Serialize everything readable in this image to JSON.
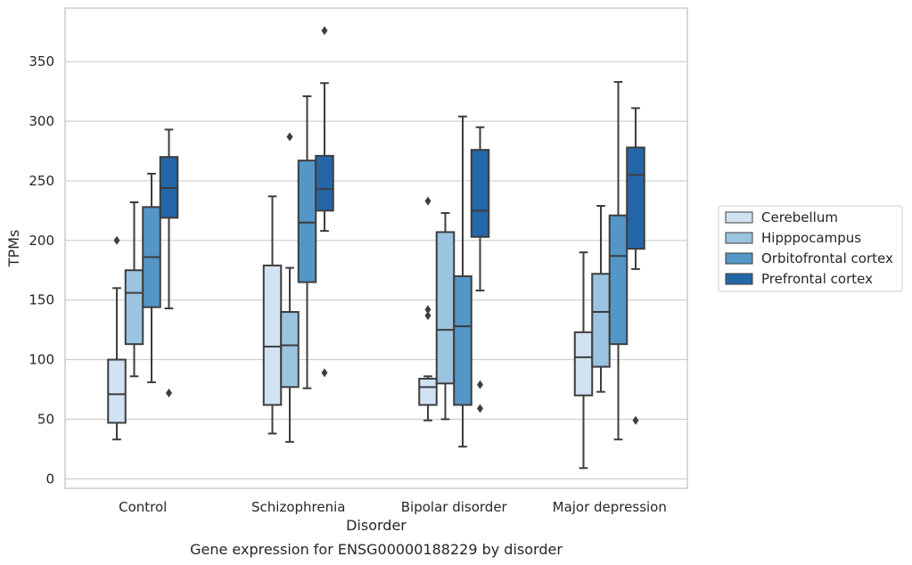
{
  "chart_data": {
    "type": "box",
    "title": "Gene expression for ENSG00000188229 by disorder",
    "xlabel": "Disorder",
    "ylabel": "TPMs",
    "ylim": [
      -8,
      395
    ],
    "yticks": [
      0,
      50,
      100,
      150,
      200,
      250,
      300,
      350
    ],
    "grid": true,
    "legend_position": "right",
    "categories": [
      "Control",
      "Schizophrenia",
      "Bipolar disorder",
      "Major depression"
    ],
    "series": [
      {
        "name": "Cerebellum",
        "color": "#d1e2f2",
        "boxes": [
          {
            "whisker_low": 33,
            "q1": 47,
            "median": 71,
            "q3": 100,
            "whisker_high": 160,
            "outliers": [
              200
            ]
          },
          {
            "whisker_low": 38,
            "q1": 62,
            "median": 111,
            "q3": 179,
            "whisker_high": 237,
            "outliers": []
          },
          {
            "whisker_low": 49,
            "q1": 62,
            "median": 77,
            "q3": 84,
            "whisker_high": 86,
            "outliers": [
              137,
              142,
              233
            ]
          },
          {
            "whisker_low": 9,
            "q1": 70,
            "median": 102,
            "q3": 123,
            "whisker_high": 190,
            "outliers": []
          }
        ]
      },
      {
        "name": "Hipppocampus",
        "color": "#9ac4df",
        "boxes": [
          {
            "whisker_low": 86,
            "q1": 113,
            "median": 156,
            "q3": 175,
            "whisker_high": 232,
            "outliers": []
          },
          {
            "whisker_low": 31,
            "q1": 77,
            "median": 112,
            "q3": 140,
            "whisker_high": 177,
            "outliers": [
              287
            ]
          },
          {
            "whisker_low": 50,
            "q1": 80,
            "median": 125,
            "q3": 207,
            "whisker_high": 223,
            "outliers": []
          },
          {
            "whisker_low": 73,
            "q1": 94,
            "median": 140,
            "q3": 172,
            "whisker_high": 229,
            "outliers": []
          }
        ]
      },
      {
        "name": "Orbitofrontal cortex",
        "color": "#5496c6",
        "boxes": [
          {
            "whisker_low": 81,
            "q1": 144,
            "median": 186,
            "q3": 228,
            "whisker_high": 256,
            "outliers": []
          },
          {
            "whisker_low": 76,
            "q1": 165,
            "median": 215,
            "q3": 267,
            "whisker_high": 321,
            "outliers": []
          },
          {
            "whisker_low": 27,
            "q1": 62,
            "median": 128,
            "q3": 170,
            "whisker_high": 304,
            "outliers": []
          },
          {
            "whisker_low": 33,
            "q1": 113,
            "median": 187,
            "q3": 221,
            "whisker_high": 333,
            "outliers": []
          }
        ]
      },
      {
        "name": "Prefrontal cortex",
        "color": "#2467a8",
        "boxes": [
          {
            "whisker_low": 143,
            "q1": 219,
            "median": 244,
            "q3": 270,
            "whisker_high": 293,
            "outliers": [
              72
            ]
          },
          {
            "whisker_low": 208,
            "q1": 225,
            "median": 243,
            "q3": 271,
            "whisker_high": 332,
            "outliers": [
              89,
              376
            ]
          },
          {
            "whisker_low": 158,
            "q1": 203,
            "median": 225,
            "q3": 276,
            "whisker_high": 295,
            "outliers": [
              59,
              79
            ]
          },
          {
            "whisker_low": 176,
            "q1": 193,
            "median": 255,
            "q3": 278,
            "whisker_high": 311,
            "outliers": [
              49
            ]
          }
        ]
      }
    ]
  }
}
